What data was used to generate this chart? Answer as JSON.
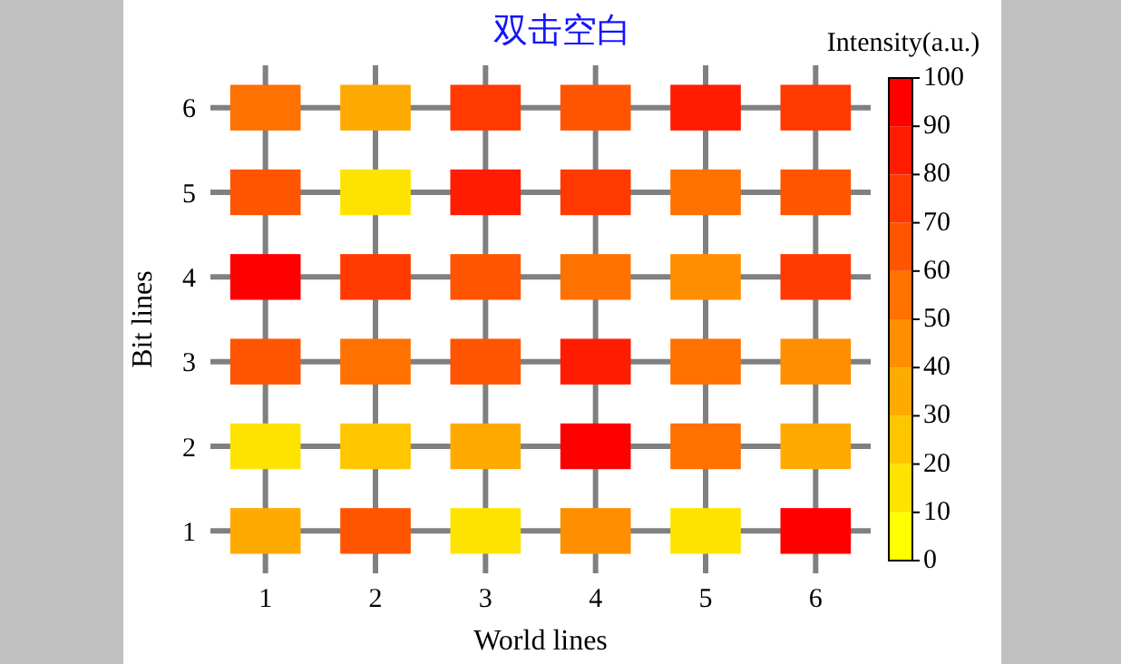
{
  "chart_data": {
    "type": "heatmap",
    "title": "双击空白",
    "xlabel": "World lines",
    "ylabel": "Bit lines",
    "clabel": "Intensity(a.u.)",
    "categories": [
      "1",
      "2",
      "3",
      "4",
      "5",
      "6"
    ],
    "y_categories": [
      "6",
      "5",
      "4",
      "3",
      "2",
      "1"
    ],
    "cells": [
      [
        55,
        35,
        75,
        65,
        85,
        75
      ],
      [
        65,
        15,
        85,
        75,
        55,
        65
      ],
      [
        95,
        75,
        65,
        55,
        45,
        75
      ],
      [
        65,
        55,
        65,
        85,
        55,
        45
      ],
      [
        15,
        25,
        35,
        95,
        55,
        35
      ],
      [
        35,
        65,
        15,
        45,
        15,
        95
      ]
    ],
    "clim": [
      0,
      100
    ],
    "cticks": [
      0,
      10,
      20,
      30,
      40,
      50,
      60,
      70,
      80,
      90,
      100
    ],
    "grid": true
  }
}
